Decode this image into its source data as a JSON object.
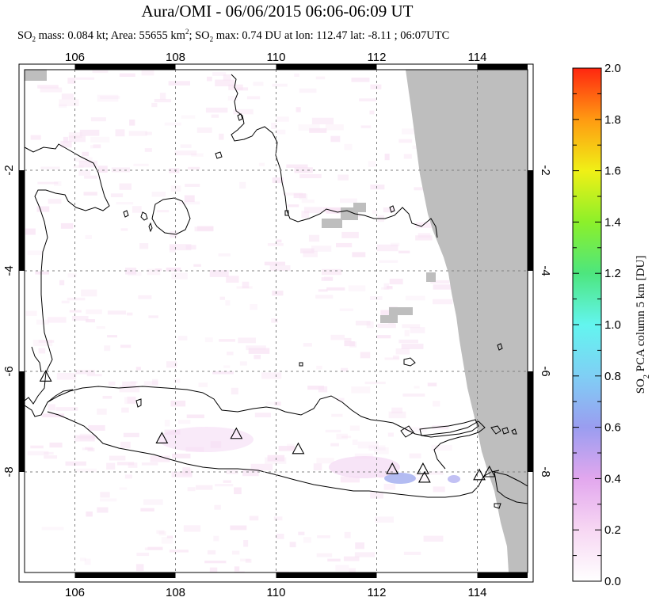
{
  "header": {
    "title": "Aura/OMI - 06/06/2015 06:06-06:09 UT",
    "subtitle_parts": {
      "so": "SO",
      "sub2": "2",
      "mass": " mass: 0.084 kt; Area: 55655 km",
      "sup2": "2",
      "sep": "; SO",
      "sub2b": "2",
      "max": " max: 0.74 DU at lon: 112.47 lat: -8.11 ; 06:07UTC"
    }
  },
  "map": {
    "lon_range": [
      105,
      115
    ],
    "lat_range": [
      -10,
      0
    ],
    "x_ticks": [
      "106",
      "108",
      "110",
      "112",
      "114"
    ],
    "x_tick_values": [
      106,
      108,
      110,
      112,
      114
    ],
    "y_ticks": [
      "-2",
      "-4",
      "-6",
      "-8"
    ],
    "y_tick_values": [
      -2,
      -4,
      -6,
      -8
    ],
    "volcanoes": [
      {
        "lon": 105.42,
        "lat": -6.1
      },
      {
        "lon": 107.73,
        "lat": -7.33
      },
      {
        "lon": 109.21,
        "lat": -7.24
      },
      {
        "lon": 110.44,
        "lat": -7.54
      },
      {
        "lon": 112.31,
        "lat": -7.94
      },
      {
        "lon": 112.92,
        "lat": -7.94
      },
      {
        "lon": 112.95,
        "lat": -8.11
      },
      {
        "lon": 114.04,
        "lat": -8.06
      },
      {
        "lon": 114.24,
        "lat": -8.0
      }
    ]
  },
  "colorbar": {
    "labels": [
      "2.0",
      "1.8",
      "1.6",
      "1.4",
      "1.2",
      "1.0",
      "0.8",
      "0.6",
      "0.4",
      "0.2",
      "0.0"
    ],
    "label_values": [
      2.0,
      1.8,
      1.6,
      1.4,
      1.2,
      1.0,
      0.8,
      0.6,
      0.4,
      0.2,
      0.0
    ],
    "range": [
      0.0,
      2.0
    ],
    "title_prefix": "SO",
    "title_sub": "2",
    "title_suffix": " PCA column 5 km [DU]"
  },
  "colors": {
    "no_data": "#bebebe",
    "coast": "#000000",
    "grid": "#808080"
  }
}
